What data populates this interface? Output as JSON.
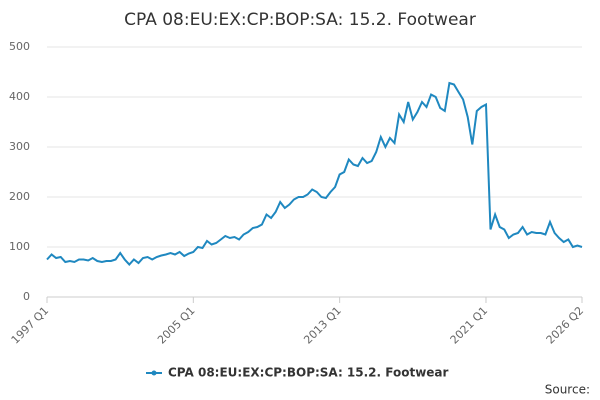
{
  "chart_data": {
    "type": "line",
    "title": "CPA 08:EU:EX:CP:BOP:SA: 15.2. Footwear",
    "categories": [
      "1997 Q1",
      null,
      null,
      null,
      null,
      null,
      null,
      null,
      null,
      null,
      null,
      null,
      null,
      null,
      null,
      null,
      null,
      null,
      null,
      null,
      null,
      null,
      null,
      null,
      null,
      null,
      null,
      null,
      null,
      null,
      null,
      null,
      "2005 Q1",
      null,
      null,
      null,
      null,
      null,
      null,
      null,
      null,
      null,
      null,
      null,
      null,
      null,
      null,
      null,
      null,
      null,
      null,
      null,
      null,
      null,
      null,
      null,
      null,
      null,
      null,
      null,
      null,
      null,
      null,
      null,
      "2013 Q1",
      null,
      null,
      null,
      null,
      null,
      null,
      null,
      null,
      null,
      null,
      null,
      null,
      null,
      null,
      null,
      null,
      null,
      null,
      null,
      null,
      null,
      null,
      null,
      null,
      null,
      null,
      null,
      null,
      null,
      null,
      null,
      "2021 Q1",
      null,
      null,
      null,
      null,
      null,
      null,
      null,
      null,
      null,
      null,
      null,
      null,
      null,
      null,
      null,
      null,
      null,
      null,
      null,
      null,
      "2026 Q2"
    ],
    "series": [
      {
        "name": "CPA 08:EU:EX:CP:BOP:SA: 15.2. Footwear",
        "color": "#1f88c0",
        "values": [
          75,
          85,
          78,
          80,
          70,
          72,
          70,
          75,
          75,
          73,
          78,
          72,
          70,
          72,
          72,
          75,
          88,
          75,
          65,
          75,
          68,
          78,
          80,
          75,
          80,
          83,
          85,
          88,
          85,
          90,
          82,
          87,
          90,
          100,
          98,
          112,
          105,
          108,
          115,
          122,
          118,
          120,
          115,
          125,
          130,
          138,
          140,
          145,
          165,
          158,
          170,
          190,
          178,
          185,
          195,
          200,
          200,
          205,
          215,
          210,
          200,
          198,
          210,
          220,
          245,
          250,
          275,
          265,
          262,
          278,
          268,
          272,
          290,
          320,
          300,
          318,
          308,
          365,
          350,
          390,
          355,
          370,
          390,
          380,
          405,
          400,
          378,
          372,
          428,
          425,
          410,
          395,
          360,
          305,
          372,
          380,
          385,
          135,
          165,
          140,
          135,
          118,
          125,
          128,
          140,
          125,
          130,
          128,
          128,
          125,
          150,
          128,
          118,
          110,
          115,
          100,
          103,
          100
        ]
      }
    ],
    "ylim": [
      0,
      500
    ],
    "yticks": [
      0,
      100,
      200,
      300,
      400,
      500
    ],
    "grid": true,
    "source": "Source:"
  }
}
